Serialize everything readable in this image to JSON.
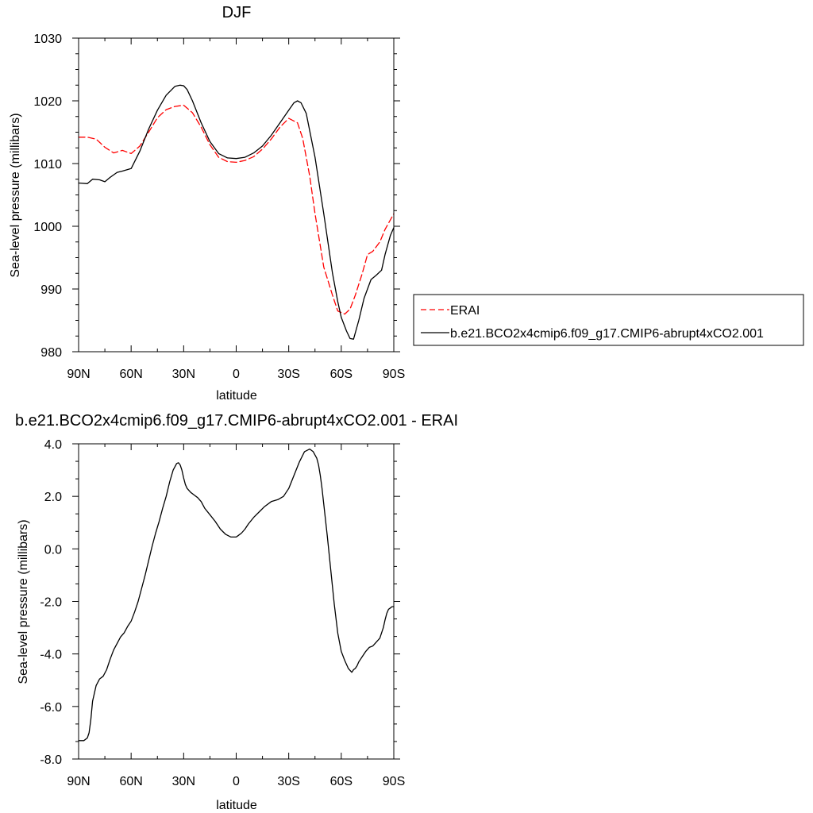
{
  "chart_data": [
    {
      "type": "line",
      "title": "DJF",
      "xlabel": "latitude",
      "ylabel": "Sea-level pressure (millibars)",
      "xlim": [
        90,
        -90
      ],
      "ylim": [
        980,
        1030
      ],
      "xtick_values": [
        90,
        60,
        30,
        0,
        -30,
        -60,
        -90
      ],
      "xtick_labels": [
        "90N",
        "60N",
        "30N",
        "0",
        "30S",
        "60S",
        "90S"
      ],
      "ytick_values": [
        980,
        990,
        1000,
        1010,
        1020,
        1030
      ],
      "ytick_labels": [
        "980",
        "990",
        "1000",
        "1010",
        "1020",
        "1030"
      ],
      "legend_position": "right",
      "series": [
        {
          "name": "ERAI",
          "color": "#ff0000",
          "dash": "dashed",
          "x": [
            90,
            85,
            80,
            75,
            70,
            65,
            60,
            55,
            50,
            45,
            40,
            35,
            30,
            25,
            20,
            15,
            10,
            5,
            0,
            -5,
            -10,
            -15,
            -20,
            -25,
            -30,
            -35,
            -38,
            -42,
            -45,
            -50,
            -55,
            -58,
            -62,
            -65,
            -68,
            -72,
            -75,
            -78,
            -82,
            -85,
            -90
          ],
          "y": [
            1014.2,
            1014.2,
            1013.9,
            1012.6,
            1011.7,
            1012.1,
            1011.6,
            1012.8,
            1015.0,
            1017.3,
            1018.6,
            1019.1,
            1019.3,
            1018.1,
            1015.8,
            1013.0,
            1011.0,
            1010.3,
            1010.2,
            1010.5,
            1011.1,
            1012.3,
            1013.9,
            1015.8,
            1017.2,
            1016.5,
            1014.0,
            1008.0,
            1002.0,
            993.5,
            989.0,
            986.5,
            986.0,
            986.8,
            989.0,
            992.5,
            995.5,
            996.0,
            997.5,
            999.5,
            1002.0
          ]
        },
        {
          "name": "b.e21.BCO2x4cmip6.f09_g17.CMIP6-abrupt4xCO2.001",
          "color": "#000000",
          "dash": "solid",
          "x": [
            90,
            85,
            82,
            78,
            75,
            72,
            68,
            65,
            60,
            55,
            50,
            45,
            40,
            35,
            32,
            30,
            28,
            25,
            20,
            15,
            10,
            5,
            0,
            -5,
            -10,
            -15,
            -20,
            -25,
            -30,
            -33,
            -35,
            -37,
            -40,
            -45,
            -50,
            -55,
            -58,
            -60,
            -63,
            -65,
            -67,
            -70,
            -73,
            -77,
            -80,
            -83,
            -85,
            -88,
            -90
          ],
          "y": [
            1006.9,
            1006.8,
            1007.5,
            1007.4,
            1007.1,
            1007.8,
            1008.6,
            1008.8,
            1009.2,
            1012.0,
            1015.5,
            1018.5,
            1020.9,
            1022.3,
            1022.5,
            1022.4,
            1021.8,
            1020.0,
            1016.5,
            1013.5,
            1011.6,
            1010.9,
            1010.8,
            1011.0,
            1011.7,
            1012.8,
            1014.5,
            1016.5,
            1018.5,
            1019.7,
            1020.0,
            1019.7,
            1018.0,
            1011.0,
            1002.0,
            992.5,
            988.0,
            985.5,
            983.3,
            982.1,
            982.0,
            985.0,
            988.5,
            991.5,
            992.2,
            993.0,
            995.5,
            998.5,
            999.8
          ]
        }
      ]
    },
    {
      "type": "line",
      "title": "b.e21.BCO2x4cmip6.f09_g17.CMIP6-abrupt4xCO2.001 - ERAI",
      "xlabel": "latitude",
      "ylabel": "Sea-level pressure (millibars)",
      "xlim": [
        90,
        -90
      ],
      "ylim": [
        -8.0,
        4.0
      ],
      "xtick_values": [
        90,
        60,
        30,
        0,
        -30,
        -60,
        -90
      ],
      "xtick_labels": [
        "90N",
        "60N",
        "30N",
        "0",
        "30S",
        "60S",
        "90S"
      ],
      "ytick_values": [
        -8.0,
        -6.0,
        -4.0,
        -2.0,
        0.0,
        2.0,
        4.0
      ],
      "ytick_labels": [
        "-8.0",
        "-6.0",
        "-4.0",
        "-2.0",
        "0.0",
        "2.0",
        "4.0"
      ],
      "series": [
        {
          "name": "",
          "color": "#000000",
          "dash": "solid",
          "x": [
            90,
            87,
            85,
            84,
            83,
            82,
            80,
            78,
            76,
            74,
            72,
            70,
            68,
            66,
            64,
            62,
            60,
            58,
            56,
            54,
            52,
            50,
            48,
            46,
            44,
            42,
            40,
            38,
            36,
            34,
            33,
            32,
            31,
            30,
            29,
            28,
            26,
            24,
            22,
            20,
            18,
            15,
            12,
            9,
            6,
            3,
            1,
            0,
            -1,
            -3,
            -5,
            -7,
            -10,
            -13,
            -16,
            -20,
            -24,
            -27,
            -30,
            -33,
            -36,
            -39,
            -42,
            -44,
            -46,
            -47,
            -48,
            -49,
            -50,
            -52,
            -54,
            -56,
            -58,
            -60,
            -62,
            -64,
            -66,
            -67,
            -68,
            -69,
            -70,
            -71,
            -72,
            -74,
            -76,
            -78,
            -80,
            -82,
            -84,
            -85,
            -86,
            -87,
            -88,
            -89,
            -90
          ],
          "y": [
            -7.3,
            -7.3,
            -7.2,
            -7.0,
            -6.5,
            -5.8,
            -5.2,
            -4.95,
            -4.85,
            -4.6,
            -4.2,
            -3.85,
            -3.6,
            -3.35,
            -3.2,
            -2.95,
            -2.75,
            -2.4,
            -2.0,
            -1.5,
            -1.0,
            -0.45,
            0.1,
            0.6,
            1.05,
            1.55,
            2.0,
            2.55,
            3.0,
            3.25,
            3.28,
            3.2,
            3.0,
            2.7,
            2.45,
            2.3,
            2.15,
            2.05,
            1.95,
            1.8,
            1.55,
            1.3,
            1.05,
            0.75,
            0.55,
            0.45,
            0.45,
            0.45,
            0.5,
            0.6,
            0.75,
            0.95,
            1.2,
            1.4,
            1.6,
            1.8,
            1.88,
            2.0,
            2.3,
            2.8,
            3.3,
            3.7,
            3.8,
            3.7,
            3.45,
            3.2,
            2.8,
            2.3,
            1.7,
            0.5,
            -0.8,
            -2.1,
            -3.2,
            -3.9,
            -4.25,
            -4.55,
            -4.7,
            -4.6,
            -4.55,
            -4.45,
            -4.3,
            -4.2,
            -4.1,
            -3.9,
            -3.75,
            -3.7,
            -3.55,
            -3.4,
            -3.0,
            -2.7,
            -2.45,
            -2.3,
            -2.25,
            -2.2,
            -2.2
          ]
        }
      ]
    }
  ]
}
